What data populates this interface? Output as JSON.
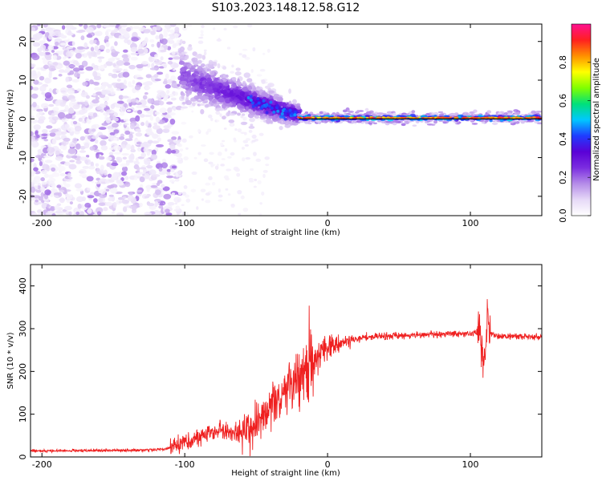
{
  "title": "S103.2023.148.12.58.G12",
  "chart_data": [
    {
      "type": "heatmap",
      "name": "spectrogram",
      "xlabel": "Height of straight line (km)",
      "ylabel": "Frequency (Hz)",
      "xlim": [
        -208,
        150
      ],
      "ylim": [
        -25,
        24.5
      ],
      "x_ticks": [
        -200,
        -100,
        0,
        100
      ],
      "y_ticks": [
        -20,
        -10,
        0,
        10,
        20
      ],
      "colorbar": {
        "label": "Normalized spectral amplitude",
        "range": [
          0,
          1
        ],
        "ticks": [
          0.0,
          0.2,
          0.4,
          0.6,
          0.8
        ],
        "tick_labels": [
          "0.0",
          "0.2",
          "0.4",
          "0.6",
          "0.8"
        ],
        "colormap": [
          "#ffffff",
          "#e6d9f7",
          "#b58ce8",
          "#7b2de0",
          "#5a00d6",
          "#1f3cff",
          "#00c8ff",
          "#00e07a",
          "#80ff00",
          "#ffff00",
          "#ff9000",
          "#ff2020",
          "#ff1090"
        ]
      },
      "regions": [
        {
          "x_range": [
            -208,
            -103
          ],
          "description": "broadband noise",
          "amplitude": 0.05
        },
        {
          "x_range": [
            -103,
            -20
          ],
          "description": "descending signal",
          "start_freq_hz": 12,
          "end_freq_hz": 1,
          "amplitude": 0.2
        },
        {
          "x_range": [
            -20,
            150
          ],
          "description": "tone near 0 Hz",
          "freq_hz": 0.3,
          "amplitude": 0.9
        }
      ],
      "reference_line": {
        "y": 0,
        "x_range": [
          -20,
          150
        ]
      }
    },
    {
      "type": "line",
      "name": "snr",
      "xlabel": "Height of straight line (km)",
      "ylabel": "SNR (10 * v/v)",
      "xlim": [
        -208,
        150
      ],
      "ylim": [
        0,
        450
      ],
      "x_ticks": [
        -200,
        -100,
        0,
        100
      ],
      "y_ticks": [
        0,
        100,
        200,
        300,
        400
      ],
      "color": "#ef2020",
      "series": [
        {
          "x": [
            -208,
            -190,
            -170,
            -150,
            -130,
            -115,
            -105,
            -95,
            -85,
            -78,
            -70,
            -62,
            -55,
            -48,
            -42,
            -36,
            -30,
            -25,
            -20,
            -17,
            -13,
            -9,
            -5,
            0,
            5,
            10,
            15,
            20,
            25,
            30,
            40,
            50,
            60,
            70,
            80,
            90,
            100,
            104,
            107,
            109,
            110,
            111,
            112,
            113,
            115,
            120,
            130,
            140,
            150
          ],
          "y": [
            15,
            14,
            15,
            15,
            16,
            18,
            25,
            40,
            55,
            65,
            60,
            55,
            65,
            80,
            100,
            130,
            150,
            175,
            190,
            205,
            220,
            235,
            245,
            255,
            262,
            268,
            273,
            276,
            279,
            281,
            283,
            284,
            285,
            286,
            287,
            287,
            288,
            290,
            300,
            230,
            200,
            260,
            350,
            300,
            285,
            282,
            282,
            281,
            280
          ]
        }
      ]
    }
  ]
}
